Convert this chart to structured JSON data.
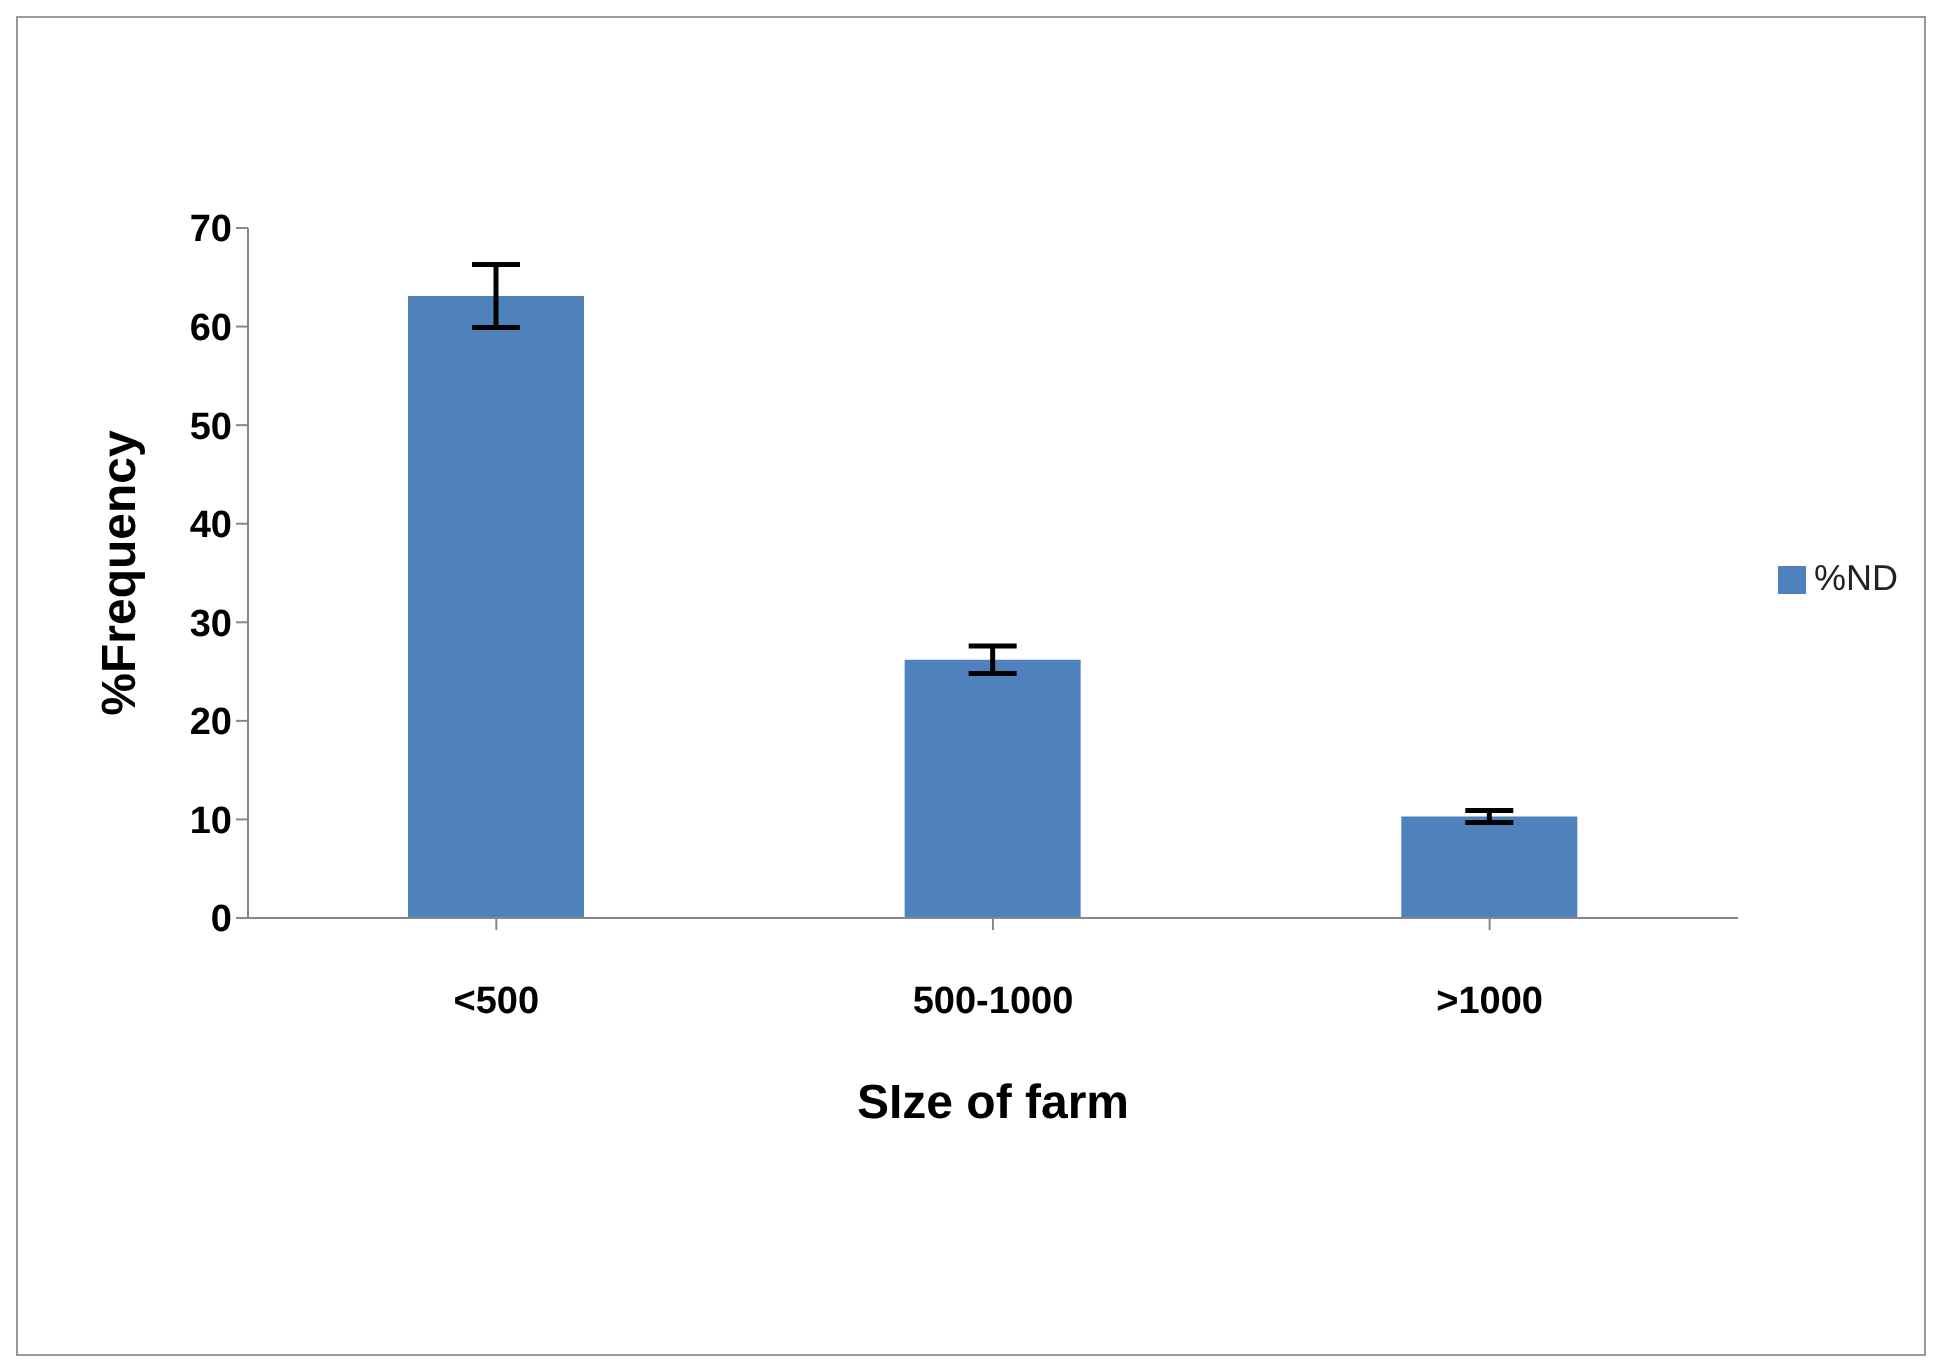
{
  "chart_data": {
    "type": "bar",
    "xlabel": "SIze of farm",
    "ylabel": "%Frequency",
    "categories": [
      "<500",
      "500-1000",
      ">1000"
    ],
    "series": [
      {
        "name": "%ND",
        "color": "#4f81bd",
        "values": [
          63.1,
          26.2,
          10.3
        ],
        "errors": [
          3.2,
          1.4,
          0.6
        ]
      }
    ],
    "ylim": [
      0,
      70
    ],
    "yticks": [
      0,
      10,
      20,
      30,
      40,
      50,
      60,
      70
    ],
    "grid": false,
    "legend": "right"
  }
}
